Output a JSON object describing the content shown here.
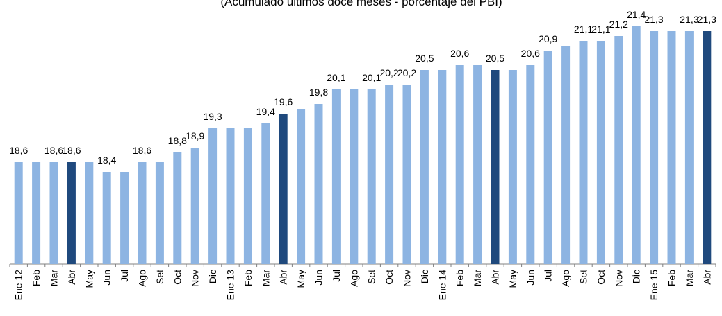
{
  "chart_data": {
    "type": "bar",
    "title": "(Acumulado últimos doce meses - porcentaje del PBI)",
    "categories": [
      "Ene 12",
      "Feb",
      "Mar",
      "Abr",
      "May",
      "Jun",
      "Jul",
      "Ago",
      "Set",
      "Oct",
      "Nov",
      "Dic",
      "Ene 13",
      "Feb",
      "Mar",
      "Abr",
      "May",
      "Jun",
      "Jul",
      "Ago",
      "Set",
      "Oct",
      "Nov",
      "Dic",
      "Ene 14",
      "Feb",
      "Mar",
      "Abr",
      "May",
      "Jun",
      "Jul",
      "Ago",
      "Set",
      "Oct",
      "Nov",
      "Dic",
      "Ene 15",
      "Feb",
      "Mar",
      "Abr"
    ],
    "values": [
      18.6,
      18.6,
      18.6,
      18.6,
      18.6,
      18.4,
      18.4,
      18.6,
      18.6,
      18.8,
      18.9,
      19.3,
      19.3,
      19.3,
      19.4,
      19.6,
      19.7,
      19.8,
      20.1,
      20.1,
      20.1,
      20.2,
      20.2,
      20.5,
      20.5,
      20.6,
      20.6,
      20.5,
      20.5,
      20.6,
      20.9,
      21.0,
      21.1,
      21.1,
      21.2,
      21.4,
      21.3,
      21.3,
      21.3,
      21.3
    ],
    "value_labels": [
      "18,6",
      null,
      "18,6",
      "18,6",
      null,
      "18,4",
      null,
      "18,6",
      null,
      "18,8",
      "18,9",
      "19,3",
      null,
      null,
      "19,4",
      "19,6",
      null,
      "19,8",
      "20,1",
      null,
      "20,1",
      "20,2",
      "20,2",
      "20,5",
      null,
      "20,6",
      null,
      "20,5",
      null,
      "20,6",
      "20,9",
      null,
      "21,1",
      "21,1",
      "21,2",
      "21,4",
      "21,3",
      null,
      "21,3",
      "21,3"
    ],
    "colors": [
      "#8db4e2",
      "#8db4e2",
      "#8db4e2",
      "#1f497d",
      "#8db4e2",
      "#8db4e2",
      "#8db4e2",
      "#8db4e2",
      "#8db4e2",
      "#8db4e2",
      "#8db4e2",
      "#8db4e2",
      "#8db4e2",
      "#8db4e2",
      "#8db4e2",
      "#1f497d",
      "#8db4e2",
      "#8db4e2",
      "#8db4e2",
      "#8db4e2",
      "#8db4e2",
      "#8db4e2",
      "#8db4e2",
      "#8db4e2",
      "#8db4e2",
      "#8db4e2",
      "#8db4e2",
      "#1f497d",
      "#8db4e2",
      "#8db4e2",
      "#8db4e2",
      "#8db4e2",
      "#8db4e2",
      "#8db4e2",
      "#8db4e2",
      "#8db4e2",
      "#8db4e2",
      "#8db4e2",
      "#8db4e2",
      "#1f497d"
    ],
    "ylim": [
      16.5,
      21.5
    ]
  }
}
